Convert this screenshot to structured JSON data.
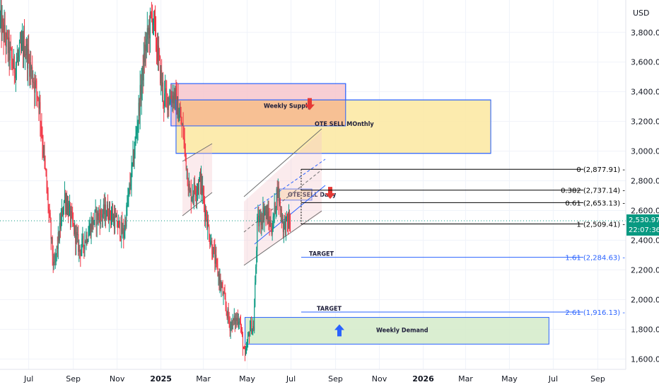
{
  "currency_label": "USD",
  "current_price": "2,530.97",
  "countdown": "22:07:36",
  "colors": {
    "up": "#089981",
    "down": "#f23645",
    "blue_line": "#2962ff",
    "fib_black": "#000000",
    "price_tag": "#089981"
  },
  "chart_data": {
    "type": "candlestick",
    "y_ticks": [
      "3,800.00",
      "3,600.00",
      "3,400.00",
      "3,200.00",
      "3,000.00",
      "2,800.00",
      "2,600.00",
      "2,400.00",
      "2,200.00",
      "2,000.00",
      "1,800.00",
      "1,600.00"
    ],
    "y_tick_values": [
      3800,
      3600,
      3400,
      3200,
      3000,
      2800,
      2600,
      2400,
      2200,
      2000,
      1800,
      1600
    ],
    "ylim": [
      1530,
      3980
    ],
    "x_ticks": [
      "Jul",
      "Sep",
      "Nov",
      "2025",
      "Mar",
      "May",
      "Jul",
      "Sep",
      "Nov",
      "2026",
      "Mar",
      "May",
      "Jul",
      "Sep"
    ],
    "x_tick_bold": [
      false,
      false,
      false,
      true,
      false,
      false,
      false,
      false,
      false,
      true,
      false,
      false,
      false,
      false
    ],
    "x_tick_dates": [
      "2024-07-01",
      "2024-09-01",
      "2024-11-01",
      "2025-01-01",
      "2025-03-01",
      "2025-05-01",
      "2025-07-01",
      "2025-09-01",
      "2025-11-01",
      "2026-01-01",
      "2026-03-01",
      "2026-05-01",
      "2026-07-01",
      "2026-09-01"
    ],
    "price_path": [
      [
        "2024-05-22",
        3880
      ],
      [
        "2024-06-10",
        3560
      ],
      [
        "2024-06-25",
        3720
      ],
      [
        "2024-07-15",
        3350
      ],
      [
        "2024-08-05",
        2200
      ],
      [
        "2024-08-20",
        2700
      ],
      [
        "2024-09-10",
        2330
      ],
      [
        "2024-10-01",
        2550
      ],
      [
        "2024-10-20",
        2600
      ],
      [
        "2024-11-10",
        2440
      ],
      [
        "2024-11-25",
        3000
      ],
      [
        "2024-12-10",
        3680
      ],
      [
        "2024-12-20",
        3930
      ],
      [
        "2025-01-05",
        3350
      ],
      [
        "2025-01-20",
        3380
      ],
      [
        "2025-02-01",
        3120
      ],
      [
        "2025-02-10",
        2700
      ],
      [
        "2025-02-25",
        2800
      ],
      [
        "2025-03-10",
        2420
      ],
      [
        "2025-03-25",
        2100
      ],
      [
        "2025-04-07",
        1830
      ],
      [
        "2025-04-20",
        1880
      ],
      [
        "2025-04-28",
        1600
      ],
      [
        "2025-05-05",
        1820
      ],
      [
        "2025-05-10",
        1810
      ],
      [
        "2025-05-15",
        2500
      ],
      [
        "2025-05-25",
        2600
      ],
      [
        "2025-06-05",
        2480
      ],
      [
        "2025-06-12",
        2750
      ],
      [
        "2025-06-20",
        2500
      ],
      [
        "2025-06-30",
        2531
      ]
    ],
    "zones": [
      {
        "label": "Weekly Supply",
        "x0": "2025-01-15",
        "x1": "2025-09-15",
        "y0": 3170,
        "y1": 3455,
        "fill": "#f7c5cc",
        "stroke": "#2962ff",
        "arrow": "down"
      },
      {
        "label": "OTE SELL MOnthly",
        "x0": "2025-01-22",
        "x1": "2026-04-05",
        "y0": 2985,
        "y1": 3345,
        "fill": "#fbe8a0",
        "stroke": "#2962ff",
        "arrow": "none"
      },
      {
        "label": "OTE SELL Daily",
        "x0": "2025-06-12",
        "x1": "2025-07-30",
        "y0": 2670,
        "y1": 2745,
        "fill": "#fde8c0",
        "stroke": "#2962ff",
        "arrow": "down"
      },
      {
        "label": "Weekly Demand",
        "x0": "2025-04-28",
        "x1": "2026-06-25",
        "y0": 1700,
        "y1": 1880,
        "fill": "#d3ebc9",
        "stroke": "#2962ff",
        "arrow": "up"
      }
    ],
    "fib_levels": [
      {
        "ratio": "0",
        "price": 2877.91,
        "label": "0 (2,877.91)",
        "color": "#000000"
      },
      {
        "ratio": "0.382",
        "price": 2737.14,
        "label": "0.382 (2,737.14)",
        "color": "#000000"
      },
      {
        "ratio": "0.61",
        "price": 2653.13,
        "label": "0.61 (2,653.13)",
        "color": "#000000"
      },
      {
        "ratio": "1",
        "price": 2509.41,
        "label": "1 (2,509.41)",
        "color": "#000000"
      },
      {
        "ratio": "1.61",
        "price": 2284.63,
        "label": "1.61 (2,284.63)",
        "color": "#2962ff"
      },
      {
        "ratio": "2.61",
        "price": 1916.13,
        "label": "2.61 (1,916.13)",
        "color": "#2962ff"
      }
    ],
    "fib_start_date": "2025-05-25",
    "fib_end_date": "2026-11-05",
    "target_labels": [
      {
        "text": "TARGET",
        "date": "2025-06-25",
        "price": 2284.63
      },
      {
        "text": "TARGET",
        "date": "2025-07-05",
        "price": 1916.13
      }
    ]
  }
}
